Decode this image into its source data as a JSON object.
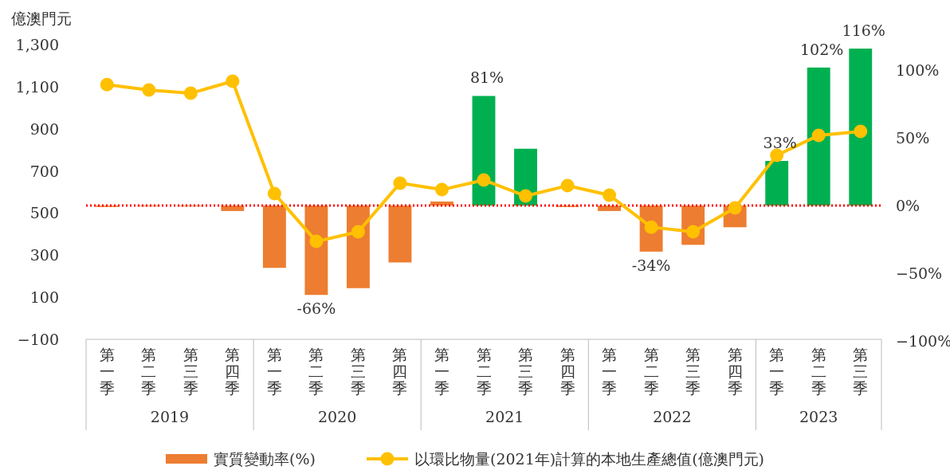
{
  "chart_data": {
    "type": "bar",
    "ylabel": "億澳門元",
    "categories": [
      "第一季",
      "第二季",
      "第三季",
      "第四季",
      "第一季",
      "第二季",
      "第三季",
      "第四季",
      "第一季",
      "第二季",
      "第三季",
      "第四季",
      "第一季",
      "第二季",
      "第三季",
      "第四季",
      "第一季",
      "第二季",
      "第三季"
    ],
    "annotations": [
      "2019",
      "2020",
      "2021",
      "2022",
      "2023"
    ],
    "series": [
      {
        "name": "實質變動率(%)",
        "axis": "y2",
        "color": "#ed7d31",
        "colors": [
          "#ed7d31",
          "#ed7d31",
          "#ed7d31",
          "#ed7d31",
          "#ed7d31",
          "#ed7d31",
          "#ed7d31",
          "#ed7d31",
          "#ed7d31",
          "#00b050",
          "#00b050",
          "#ed7d31",
          "#ed7d31",
          "#ed7d31",
          "#ed7d31",
          "#ed7d31",
          "#00b050",
          "#00b050",
          "#00b050"
        ],
        "values": [
          -1,
          -0.5,
          -0.5,
          -4,
          -46,
          -66,
          -61,
          -42,
          3,
          81,
          42,
          -1,
          -4,
          -34,
          -29,
          -16,
          33,
          102,
          116
        ],
        "value_labels": [
          null,
          null,
          null,
          null,
          null,
          "-66%",
          null,
          null,
          null,
          "81%",
          null,
          null,
          null,
          "-34%",
          null,
          null,
          "33%",
          "102%",
          "116%"
        ]
      },
      {
        "name": "以環比物量(2021年)計算的本地生產總值(億澳門元)",
        "type": "line",
        "color": "#ffc000",
        "marker": "circle",
        "values": [
          1110,
          1084,
          1069,
          1126,
          592,
          365,
          411,
          642,
          611,
          657,
          581,
          630,
          585,
          433,
          411,
          524,
          774,
          869,
          888
        ]
      }
    ],
    "ylim": [
      -100,
      1300
    ],
    "yticks": [
      {
        "value": -100,
        "label": "−100"
      },
      100,
      300,
      500,
      700,
      900,
      {
        "value": 1100,
        "label": "1,100"
      },
      {
        "value": 1300,
        "label": "1,300"
      }
    ],
    "y2lim": [
      -100,
      116
    ],
    "y2ticks": [
      {
        "value": -100,
        "label": "−100%"
      },
      {
        "value": -50,
        "label": "−50%"
      },
      {
        "value": 0,
        "label": "0%"
      },
      {
        "value": 50,
        "label": "50%"
      },
      {
        "value": 100,
        "label": "100%"
      }
    ],
    "ref_lines": [
      {
        "axis": "y2",
        "value": 0,
        "color": "#ff0000",
        "line_style": "dotted"
      }
    ],
    "grid": false,
    "legend": "bottom"
  }
}
